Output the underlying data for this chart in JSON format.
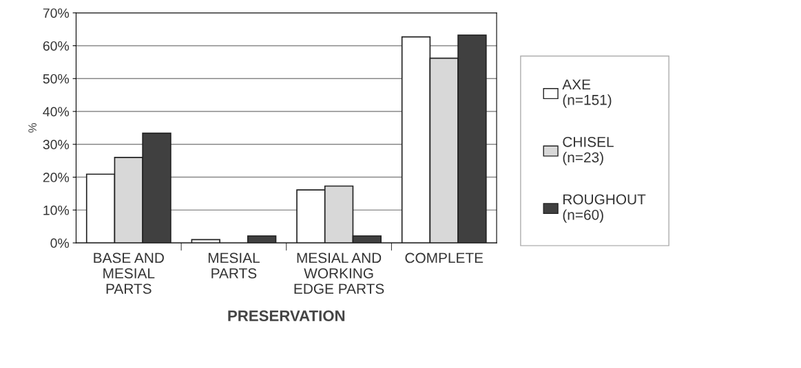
{
  "chart_data": {
    "type": "bar",
    "xlabel": "PRESERVATION",
    "ylabel": "%",
    "categories": [
      "BASE AND\nMESIAL\nPARTS",
      "MESIAL\nPARTS",
      "MESIAL AND\nWORKING\nEDGE PARTS",
      "COMPLETE"
    ],
    "series": [
      {
        "name": "AXE\n(n=151)",
        "color": "#ffffff",
        "values": [
          20.9,
          1,
          16.1,
          62.7
        ]
      },
      {
        "name": "CHISEL\n(n=23)",
        "color": "#d8d8d8",
        "values": [
          26,
          null,
          17.3,
          56.2
        ]
      },
      {
        "name": "ROUGHOUT\n(n=60)",
        "color": "#404040",
        "values": [
          33.4,
          2.1,
          2.1,
          63.2
        ]
      }
    ],
    "ylim": [
      0,
      70
    ],
    "yticks": [
      {
        "value": 0,
        "label": "0%"
      },
      {
        "value": 10,
        "label": "10%"
      },
      {
        "value": 20,
        "label": "20%"
      },
      {
        "value": 30,
        "label": "30%"
      },
      {
        "value": 40,
        "label": "40%"
      },
      {
        "value": 50,
        "label": "50%"
      },
      {
        "value": 60,
        "label": "60%"
      },
      {
        "value": 70,
        "label": "70%"
      }
    ],
    "grid": "y",
    "legend": "right"
  }
}
